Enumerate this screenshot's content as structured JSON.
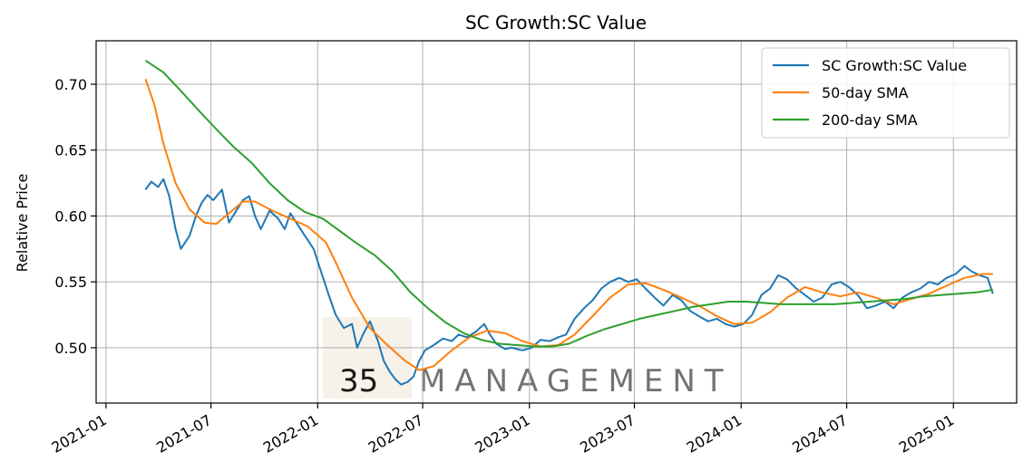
{
  "chart_data": {
    "type": "line",
    "title": "SC Growth:SC Value",
    "xlabel": "",
    "ylabel": "Relative Price",
    "xlim": [
      "2020-12-15",
      "2025-04-20"
    ],
    "ylim": [
      0.458,
      0.733
    ],
    "grid": true,
    "legend_position": "top-right",
    "x_ticks": [
      "2021-01",
      "2021-07",
      "2022-01",
      "2022-07",
      "2023-01",
      "2023-07",
      "2024-01",
      "2024-07",
      "2025-01"
    ],
    "y_ticks": [
      0.5,
      0.55,
      0.6,
      0.65,
      0.7
    ],
    "y_tick_labels": [
      "0.50",
      "0.55",
      "0.60",
      "0.65",
      "0.70"
    ],
    "watermark": [
      "35",
      "MANAGEMENT"
    ],
    "series": [
      {
        "name": "SC Growth:SC Value",
        "color": "#1f77b4",
        "points": [
          [
            "2021-03-10",
            0.62
          ],
          [
            "2021-03-20",
            0.626
          ],
          [
            "2021-04-01",
            0.622
          ],
          [
            "2021-04-10",
            0.628
          ],
          [
            "2021-04-20",
            0.615
          ],
          [
            "2021-05-01",
            0.59
          ],
          [
            "2021-05-10",
            0.575
          ],
          [
            "2021-05-25",
            0.585
          ],
          [
            "2021-06-05",
            0.6
          ],
          [
            "2021-06-15",
            0.61
          ],
          [
            "2021-06-25",
            0.616
          ],
          [
            "2021-07-05",
            0.612
          ],
          [
            "2021-07-20",
            0.62
          ],
          [
            "2021-08-01",
            0.595
          ],
          [
            "2021-08-15",
            0.605
          ],
          [
            "2021-08-25",
            0.612
          ],
          [
            "2021-09-05",
            0.615
          ],
          [
            "2021-09-15",
            0.6
          ],
          [
            "2021-09-25",
            0.59
          ],
          [
            "2021-10-10",
            0.604
          ],
          [
            "2021-10-25",
            0.598
          ],
          [
            "2021-11-05",
            0.59
          ],
          [
            "2021-11-15",
            0.602
          ],
          [
            "2021-11-25",
            0.595
          ],
          [
            "2021-12-10",
            0.585
          ],
          [
            "2021-12-25",
            0.575
          ],
          [
            "2022-01-05",
            0.56
          ],
          [
            "2022-01-20",
            0.54
          ],
          [
            "2022-02-01",
            0.525
          ],
          [
            "2022-02-15",
            0.515
          ],
          [
            "2022-03-01",
            0.518
          ],
          [
            "2022-03-10",
            0.5
          ],
          [
            "2022-03-20",
            0.51
          ],
          [
            "2022-04-01",
            0.52
          ],
          [
            "2022-04-15",
            0.505
          ],
          [
            "2022-04-25",
            0.49
          ],
          [
            "2022-05-05",
            0.482
          ],
          [
            "2022-05-15",
            0.476
          ],
          [
            "2022-05-25",
            0.472
          ],
          [
            "2022-06-05",
            0.474
          ],
          [
            "2022-06-15",
            0.478
          ],
          [
            "2022-06-25",
            0.49
          ],
          [
            "2022-07-05",
            0.498
          ],
          [
            "2022-07-20",
            0.502
          ],
          [
            "2022-08-05",
            0.507
          ],
          [
            "2022-08-20",
            0.505
          ],
          [
            "2022-09-01",
            0.51
          ],
          [
            "2022-09-15",
            0.508
          ],
          [
            "2022-09-30",
            0.512
          ],
          [
            "2022-10-15",
            0.518
          ],
          [
            "2022-10-25",
            0.51
          ],
          [
            "2022-11-05",
            0.503
          ],
          [
            "2022-11-20",
            0.499
          ],
          [
            "2022-12-01",
            0.5
          ],
          [
            "2022-12-20",
            0.498
          ],
          [
            "2023-01-05",
            0.5
          ],
          [
            "2023-01-20",
            0.506
          ],
          [
            "2023-02-05",
            0.505
          ],
          [
            "2023-02-20",
            0.508
          ],
          [
            "2023-03-05",
            0.51
          ],
          [
            "2023-03-20",
            0.522
          ],
          [
            "2023-04-05",
            0.53
          ],
          [
            "2023-04-20",
            0.536
          ],
          [
            "2023-05-05",
            0.545
          ],
          [
            "2023-05-20",
            0.55
          ],
          [
            "2023-06-05",
            0.553
          ],
          [
            "2023-06-20",
            0.55
          ],
          [
            "2023-07-05",
            0.552
          ],
          [
            "2023-07-20",
            0.545
          ],
          [
            "2023-08-05",
            0.538
          ],
          [
            "2023-08-20",
            0.532
          ],
          [
            "2023-09-05",
            0.54
          ],
          [
            "2023-09-20",
            0.536
          ],
          [
            "2023-10-05",
            0.528
          ],
          [
            "2023-10-20",
            0.524
          ],
          [
            "2023-11-05",
            0.52
          ],
          [
            "2023-11-20",
            0.522
          ],
          [
            "2023-12-05",
            0.518
          ],
          [
            "2023-12-20",
            0.516
          ],
          [
            "2024-01-05",
            0.518
          ],
          [
            "2024-01-20",
            0.525
          ],
          [
            "2024-02-05",
            0.54
          ],
          [
            "2024-02-20",
            0.545
          ],
          [
            "2024-03-05",
            0.555
          ],
          [
            "2024-03-20",
            0.552
          ],
          [
            "2024-04-05",
            0.545
          ],
          [
            "2024-04-20",
            0.54
          ],
          [
            "2024-05-05",
            0.535
          ],
          [
            "2024-05-20",
            0.538
          ],
          [
            "2024-06-05",
            0.548
          ],
          [
            "2024-06-20",
            0.55
          ],
          [
            "2024-07-05",
            0.546
          ],
          [
            "2024-07-20",
            0.54
          ],
          [
            "2024-08-05",
            0.53
          ],
          [
            "2024-08-20",
            0.532
          ],
          [
            "2024-09-05",
            0.535
          ],
          [
            "2024-09-20",
            0.53
          ],
          [
            "2024-10-05",
            0.538
          ],
          [
            "2024-10-20",
            0.542
          ],
          [
            "2024-11-05",
            0.545
          ],
          [
            "2024-11-20",
            0.55
          ],
          [
            "2024-12-05",
            0.548
          ],
          [
            "2024-12-20",
            0.553
          ],
          [
            "2025-01-05",
            0.556
          ],
          [
            "2025-01-20",
            0.562
          ],
          [
            "2025-02-01",
            0.558
          ],
          [
            "2025-02-15",
            0.555
          ],
          [
            "2025-03-01",
            0.553
          ],
          [
            "2025-03-10",
            0.541
          ]
        ]
      },
      {
        "name": "50-day SMA",
        "color": "#ff7f0e",
        "points": [
          [
            "2021-03-10",
            0.704
          ],
          [
            "2021-03-25",
            0.685
          ],
          [
            "2021-04-10",
            0.655
          ],
          [
            "2021-05-01",
            0.625
          ],
          [
            "2021-05-25",
            0.605
          ],
          [
            "2021-06-20",
            0.595
          ],
          [
            "2021-07-10",
            0.594
          ],
          [
            "2021-08-01",
            0.602
          ],
          [
            "2021-08-25",
            0.611
          ],
          [
            "2021-09-15",
            0.611
          ],
          [
            "2021-10-15",
            0.604
          ],
          [
            "2021-11-15",
            0.598
          ],
          [
            "2021-12-15",
            0.592
          ],
          [
            "2022-01-15",
            0.58
          ],
          [
            "2022-02-01",
            0.565
          ],
          [
            "2022-03-01",
            0.538
          ],
          [
            "2022-04-01",
            0.515
          ],
          [
            "2022-05-01",
            0.502
          ],
          [
            "2022-06-01",
            0.49
          ],
          [
            "2022-06-25",
            0.483
          ],
          [
            "2022-07-20",
            0.486
          ],
          [
            "2022-08-20",
            0.498
          ],
          [
            "2022-09-20",
            0.508
          ],
          [
            "2022-10-20",
            0.513
          ],
          [
            "2022-11-20",
            0.511
          ],
          [
            "2022-12-20",
            0.505
          ],
          [
            "2023-01-20",
            0.501
          ],
          [
            "2023-02-20",
            0.502
          ],
          [
            "2023-03-20",
            0.51
          ],
          [
            "2023-04-20",
            0.524
          ],
          [
            "2023-05-20",
            0.538
          ],
          [
            "2023-06-20",
            0.548
          ],
          [
            "2023-07-20",
            0.549
          ],
          [
            "2023-08-20",
            0.544
          ],
          [
            "2023-09-20",
            0.538
          ],
          [
            "2023-10-20",
            0.532
          ],
          [
            "2023-11-20",
            0.524
          ],
          [
            "2023-12-20",
            0.518
          ],
          [
            "2024-01-20",
            0.519
          ],
          [
            "2024-02-20",
            0.527
          ],
          [
            "2024-03-20",
            0.538
          ],
          [
            "2024-04-20",
            0.546
          ],
          [
            "2024-05-20",
            0.542
          ],
          [
            "2024-06-20",
            0.539
          ],
          [
            "2024-07-20",
            0.542
          ],
          [
            "2024-08-20",
            0.538
          ],
          [
            "2024-09-20",
            0.533
          ],
          [
            "2024-10-20",
            0.537
          ],
          [
            "2024-11-20",
            0.541
          ],
          [
            "2024-12-20",
            0.547
          ],
          [
            "2025-01-20",
            0.553
          ],
          [
            "2025-02-20",
            0.556
          ],
          [
            "2025-03-10",
            0.556
          ]
        ]
      },
      {
        "name": "200-day SMA",
        "color": "#2ca02c",
        "points": [
          [
            "2021-03-10",
            0.718
          ],
          [
            "2021-04-10",
            0.709
          ],
          [
            "2021-05-10",
            0.695
          ],
          [
            "2021-06-10",
            0.68
          ],
          [
            "2021-07-10",
            0.666
          ],
          [
            "2021-08-10",
            0.652
          ],
          [
            "2021-09-10",
            0.64
          ],
          [
            "2021-10-10",
            0.625
          ],
          [
            "2021-11-10",
            0.612
          ],
          [
            "2021-12-10",
            0.603
          ],
          [
            "2022-01-10",
            0.598
          ],
          [
            "2022-02-10",
            0.588
          ],
          [
            "2022-03-10",
            0.579
          ],
          [
            "2022-04-10",
            0.57
          ],
          [
            "2022-05-10",
            0.558
          ],
          [
            "2022-06-10",
            0.542
          ],
          [
            "2022-07-10",
            0.53
          ],
          [
            "2022-08-10",
            0.519
          ],
          [
            "2022-09-10",
            0.511
          ],
          [
            "2022-10-10",
            0.506
          ],
          [
            "2022-11-10",
            0.503
          ],
          [
            "2022-12-10",
            0.502
          ],
          [
            "2023-01-10",
            0.501
          ],
          [
            "2023-02-10",
            0.501
          ],
          [
            "2023-03-10",
            0.503
          ],
          [
            "2023-04-10",
            0.509
          ],
          [
            "2023-05-10",
            0.514
          ],
          [
            "2023-06-10",
            0.518
          ],
          [
            "2023-07-10",
            0.522
          ],
          [
            "2023-08-10",
            0.525
          ],
          [
            "2023-09-10",
            0.528
          ],
          [
            "2023-10-10",
            0.531
          ],
          [
            "2023-11-10",
            0.533
          ],
          [
            "2023-12-10",
            0.535
          ],
          [
            "2024-01-10",
            0.535
          ],
          [
            "2024-02-10",
            0.534
          ],
          [
            "2024-03-10",
            0.533
          ],
          [
            "2024-04-10",
            0.533
          ],
          [
            "2024-05-10",
            0.533
          ],
          [
            "2024-06-10",
            0.533
          ],
          [
            "2024-07-10",
            0.534
          ],
          [
            "2024-08-10",
            0.535
          ],
          [
            "2024-09-10",
            0.536
          ],
          [
            "2024-10-10",
            0.537
          ],
          [
            "2024-11-10",
            0.539
          ],
          [
            "2024-12-10",
            0.54
          ],
          [
            "2025-01-10",
            0.541
          ],
          [
            "2025-02-10",
            0.542
          ],
          [
            "2025-03-10",
            0.544
          ]
        ]
      }
    ]
  }
}
